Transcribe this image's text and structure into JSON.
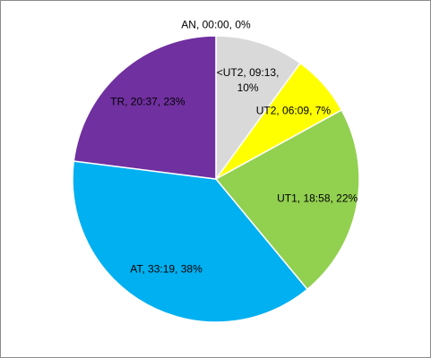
{
  "chart_data": {
    "type": "pie",
    "categories": [
      "AN",
      "<UT2",
      "UT2",
      "UT1",
      "AT",
      "TR"
    ],
    "values": [
      0,
      10,
      7,
      22,
      38,
      23
    ],
    "value_labels": [
      "AN, 00:00, 0%",
      "<UT2, 09:13, 10%",
      "UT2, 06:09, 7%",
      "UT1, 18:58, 22%",
      "AT,  33:19, 38%",
      "TR, 20:37, 23%"
    ],
    "colors": [
      "#a6a6a6",
      "#d9d9d9",
      "#ffff00",
      "#92d050",
      "#00b0f0",
      "#7030a0"
    ]
  }
}
